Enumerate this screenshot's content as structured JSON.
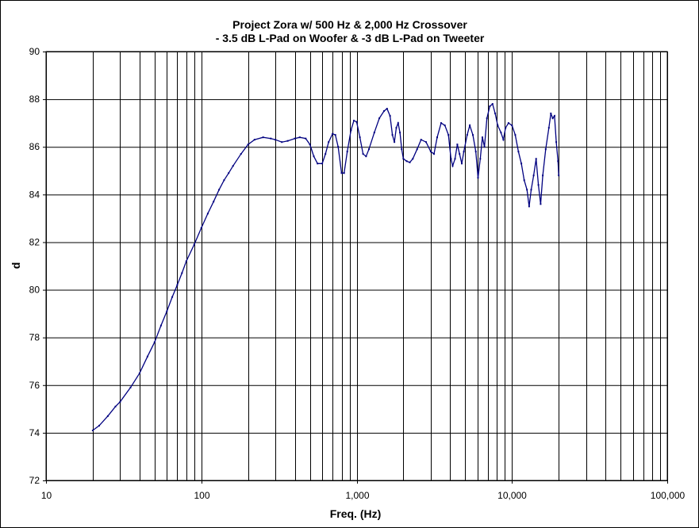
{
  "chart_data": {
    "type": "line",
    "title": "Project Zora w/ 500 Hz & 2,000 Hz Crossover",
    "subtitle": "- 3.5 dB L-Pad on Woofer & -3 dB L-Pad on Tweeter",
    "xlabel": "Freq. (Hz)",
    "ylabel": "d",
    "x_scale": "log",
    "xlim": [
      10,
      100000
    ],
    "ylim": [
      72,
      90
    ],
    "x_ticks": [
      10,
      100,
      1000,
      10000,
      100000
    ],
    "x_tick_labels": [
      "10",
      "100",
      "1,000",
      "10,000",
      "100,000"
    ],
    "y_ticks": [
      72,
      74,
      76,
      78,
      80,
      82,
      84,
      86,
      88,
      90
    ],
    "y_tick_labels": [
      "72",
      "74",
      "76",
      "78",
      "80",
      "82",
      "84",
      "86",
      "88",
      "90"
    ],
    "grid": true,
    "legend": "none",
    "line_color": "#000080",
    "series": [
      {
        "points": [
          [
            20,
            74.1
          ],
          [
            22,
            74.3
          ],
          [
            25,
            74.7
          ],
          [
            28,
            75.1
          ],
          [
            30,
            75.3
          ],
          [
            35,
            75.9
          ],
          [
            40,
            76.5
          ],
          [
            45,
            77.2
          ],
          [
            50,
            77.8
          ],
          [
            55,
            78.5
          ],
          [
            60,
            79.1
          ],
          [
            65,
            79.7
          ],
          [
            70,
            80.2
          ],
          [
            75,
            80.7
          ],
          [
            80,
            81.2
          ],
          [
            90,
            81.9
          ],
          [
            100,
            82.6
          ],
          [
            110,
            83.2
          ],
          [
            120,
            83.7
          ],
          [
            130,
            84.2
          ],
          [
            140,
            84.6
          ],
          [
            150,
            84.9
          ],
          [
            160,
            85.2
          ],
          [
            180,
            85.7
          ],
          [
            200,
            86.1
          ],
          [
            220,
            86.3
          ],
          [
            250,
            86.4
          ],
          [
            280,
            86.35
          ],
          [
            300,
            86.3
          ],
          [
            330,
            86.2
          ],
          [
            360,
            86.25
          ],
          [
            400,
            86.35
          ],
          [
            430,
            86.4
          ],
          [
            470,
            86.35
          ],
          [
            500,
            86.1
          ],
          [
            530,
            85.6
          ],
          [
            560,
            85.3
          ],
          [
            600,
            85.3
          ],
          [
            630,
            85.7
          ],
          [
            660,
            86.2
          ],
          [
            700,
            86.55
          ],
          [
            730,
            86.5
          ],
          [
            760,
            86.0
          ],
          [
            800,
            84.9
          ],
          [
            830,
            84.9
          ],
          [
            870,
            85.8
          ],
          [
            920,
            86.7
          ],
          [
            960,
            87.1
          ],
          [
            1000,
            87.05
          ],
          [
            1050,
            86.4
          ],
          [
            1100,
            85.7
          ],
          [
            1150,
            85.6
          ],
          [
            1200,
            85.9
          ],
          [
            1300,
            86.6
          ],
          [
            1400,
            87.2
          ],
          [
            1500,
            87.5
          ],
          [
            1570,
            87.6
          ],
          [
            1640,
            87.3
          ],
          [
            1700,
            86.5
          ],
          [
            1750,
            86.2
          ],
          [
            1800,
            86.8
          ],
          [
            1850,
            87.0
          ],
          [
            1900,
            86.6
          ],
          [
            1950,
            85.9
          ],
          [
            2000,
            85.5
          ],
          [
            2100,
            85.4
          ],
          [
            2200,
            85.35
          ],
          [
            2300,
            85.5
          ],
          [
            2450,
            85.9
          ],
          [
            2600,
            86.3
          ],
          [
            2800,
            86.2
          ],
          [
            3000,
            85.8
          ],
          [
            3150,
            85.7
          ],
          [
            3300,
            86.4
          ],
          [
            3500,
            87.0
          ],
          [
            3700,
            86.9
          ],
          [
            3900,
            86.5
          ],
          [
            4050,
            85.5
          ],
          [
            4150,
            85.2
          ],
          [
            4300,
            85.5
          ],
          [
            4450,
            86.1
          ],
          [
            4600,
            85.7
          ],
          [
            4750,
            85.3
          ],
          [
            4900,
            85.8
          ],
          [
            5150,
            86.5
          ],
          [
            5350,
            86.9
          ],
          [
            5600,
            86.5
          ],
          [
            5850,
            85.8
          ],
          [
            6050,
            84.7
          ],
          [
            6250,
            85.5
          ],
          [
            6450,
            86.4
          ],
          [
            6650,
            86.0
          ],
          [
            6900,
            87.2
          ],
          [
            7200,
            87.7
          ],
          [
            7500,
            87.8
          ],
          [
            7800,
            87.4
          ],
          [
            8100,
            86.9
          ],
          [
            8500,
            86.6
          ],
          [
            8800,
            86.3
          ],
          [
            9100,
            86.8
          ],
          [
            9500,
            87.0
          ],
          [
            10000,
            86.9
          ],
          [
            10500,
            86.5
          ],
          [
            11000,
            85.8
          ],
          [
            11500,
            85.3
          ],
          [
            12000,
            84.6
          ],
          [
            12500,
            84.2
          ],
          [
            12900,
            83.5
          ],
          [
            13300,
            84.2
          ],
          [
            13800,
            84.8
          ],
          [
            14300,
            85.5
          ],
          [
            14800,
            84.4
          ],
          [
            15300,
            83.6
          ],
          [
            15800,
            84.8
          ],
          [
            16500,
            85.9
          ],
          [
            17300,
            86.8
          ],
          [
            17800,
            87.4
          ],
          [
            18300,
            87.2
          ],
          [
            18800,
            87.3
          ],
          [
            19300,
            86.2
          ],
          [
            19800,
            85.4
          ],
          [
            20000,
            84.8
          ]
        ]
      }
    ]
  }
}
